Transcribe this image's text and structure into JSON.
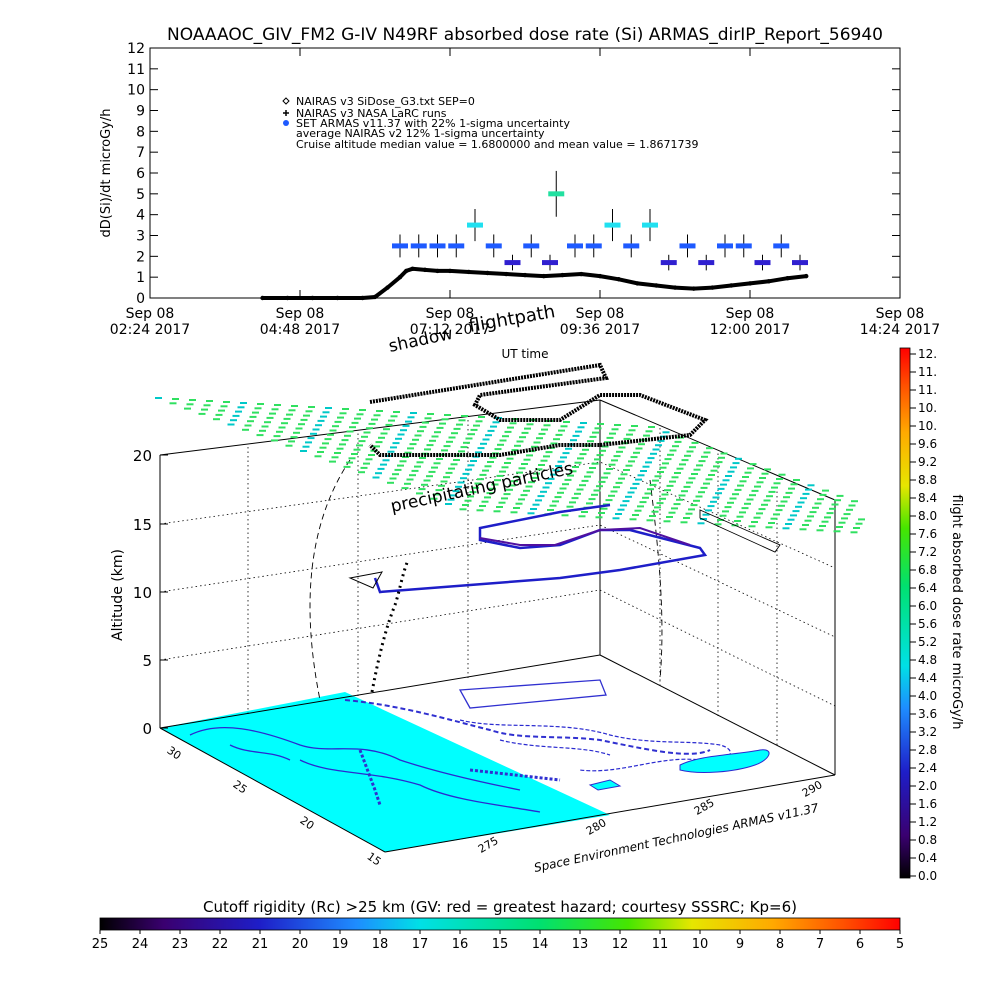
{
  "figure": {
    "title": "NOAAAOC_GIV_FM2 G-IV   N49RF  absorbed dose rate (Si) ARMAS_dirIP_Report_56940"
  },
  "chart_data": [
    {
      "type": "scatter",
      "ylabel": "dD(Si)/dt microGy/h",
      "xlabel": "UT time",
      "ylim": [
        0,
        12
      ],
      "yticks": [
        "0",
        "1",
        "2",
        "3",
        "4",
        "5",
        "6",
        "7",
        "8",
        "9",
        "10",
        "11",
        "12"
      ],
      "xtick_labels": [
        {
          "line1": "Sep 08",
          "line2": "02:24 2017"
        },
        {
          "line1": "Sep 08",
          "line2": "04:48 2017"
        },
        {
          "line1": "Sep 08",
          "line2": "07:12 2017"
        },
        {
          "line1": "Sep 08",
          "line2": "09:36 2017"
        },
        {
          "line1": "Sep 08",
          "line2": "12:00 2017"
        },
        {
          "line1": "Sep 08",
          "line2": "14:24 2017"
        }
      ],
      "xlim_hours": [
        2.4,
        14.4
      ],
      "legend": [
        {
          "symbol": "diamond",
          "text": "NAIRAS v3 SiDose_G3.txt SEP=0"
        },
        {
          "symbol": "plus",
          "text": "NAIRAS v3 NASA LaRC runs"
        },
        {
          "symbol": "filled-circle",
          "text": "SET ARMAS v11.37 with 22% 1-sigma uncertainty"
        },
        {
          "symbol": "none",
          "text": "average NAIRAS v2 12% 1-sigma uncertainty"
        },
        {
          "symbol": "none",
          "text": "Cruise altitude median value =    1.6800000 and mean value =    1.8671739"
        }
      ],
      "series": [
        {
          "name": "NAIRAS v3 SiDose_G3.txt SEP=0",
          "x_hours": [
            4.2,
            4.6,
            5.0,
            5.4,
            5.8,
            6.0,
            6.2,
            6.4,
            6.5,
            6.6,
            6.8,
            7.0,
            7.2,
            7.5,
            7.8,
            8.1,
            8.4,
            8.7,
            9.0,
            9.3,
            9.6,
            9.9,
            10.2,
            10.5,
            10.8,
            11.1,
            11.4,
            11.7,
            12.0,
            12.3,
            12.6,
            12.9
          ],
          "values": [
            0.0,
            0.0,
            0.0,
            0.0,
            0.0,
            0.05,
            0.5,
            1.0,
            1.3,
            1.4,
            1.35,
            1.3,
            1.3,
            1.25,
            1.2,
            1.15,
            1.1,
            1.05,
            1.1,
            1.15,
            1.05,
            0.9,
            0.7,
            0.6,
            0.5,
            0.45,
            0.5,
            0.6,
            0.7,
            0.8,
            0.95,
            1.05
          ]
        },
        {
          "name": "SET ARMAS v11.37 with 22% 1-sigma uncertainty",
          "x_hours": [
            6.4,
            6.7,
            7.0,
            7.3,
            7.6,
            7.9,
            8.2,
            8.5,
            8.8,
            8.9,
            9.2,
            9.5,
            9.8,
            10.1,
            10.4,
            10.7,
            11.0,
            11.3,
            11.6,
            11.9,
            12.2,
            12.5,
            12.8
          ],
          "values": [
            2.5,
            2.5,
            2.5,
            2.5,
            3.5,
            2.5,
            1.7,
            2.5,
            1.7,
            5.0,
            2.5,
            2.5,
            3.5,
            2.5,
            3.5,
            1.7,
            2.5,
            1.7,
            2.5,
            2.5,
            1.7,
            2.5,
            1.7
          ]
        }
      ]
    },
    {
      "type": "scatter",
      "zlabel": "Altitude (km)",
      "zticks": [
        "0",
        "5",
        "10",
        "15",
        "20"
      ],
      "lat_ticks": [
        "15",
        "20",
        "25",
        "30"
      ],
      "lon_ticks": [
        "275",
        "280",
        "285",
        "290"
      ],
      "annotations": [
        "shadow",
        "flightpath",
        "precipitating particles",
        "Space Environment Technologies ARMAS v11.37"
      ],
      "colorbar": {
        "label": "flight absorbed dose rate microGy/h",
        "ticks": [
          "12.",
          "11.",
          "11.",
          "10.",
          "10.",
          "9.6",
          "9.2",
          "8.8",
          "8.4",
          "8.0",
          "7.6",
          "7.2",
          "6.8",
          "6.4",
          "6.0",
          "5.6",
          "5.2",
          "4.8",
          "4.4",
          "4.0",
          "3.6",
          "3.2",
          "2.8",
          "2.4",
          "2.0",
          "1.6",
          "1.2",
          "0.8",
          "0.4",
          "0.0"
        ]
      },
      "rigidity_bar": {
        "label": "Cutoff rigidity (Rc) >25 km (GV: red = greatest hazard; courtesy SSSRC; Kp=6)",
        "ticks": [
          "25",
          "24",
          "23",
          "22",
          "21",
          "20",
          "19",
          "18",
          "17",
          "16",
          "15",
          "14",
          "13",
          "12",
          "11",
          "10",
          "9",
          "8",
          "7",
          "6",
          "5"
        ]
      }
    }
  ]
}
